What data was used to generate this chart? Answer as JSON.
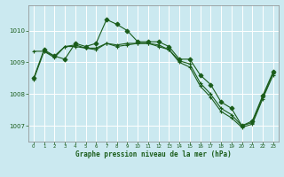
{
  "title": "Graphe pression niveau de la mer (hPa)",
  "bg_color": "#cbe9f0",
  "grid_color": "#ffffff",
  "line_color": "#1a5c1a",
  "xlim": [
    -0.5,
    23.5
  ],
  "ylim": [
    1006.5,
    1010.8
  ],
  "yticks": [
    1007,
    1008,
    1009,
    1010
  ],
  "xticks": [
    0,
    1,
    2,
    3,
    4,
    5,
    6,
    7,
    8,
    9,
    10,
    11,
    12,
    13,
    14,
    15,
    16,
    17,
    18,
    19,
    20,
    21,
    22,
    23
  ],
  "series1": {
    "x": [
      0,
      1,
      2,
      3,
      4,
      5,
      6,
      7,
      8,
      9,
      10,
      11,
      12,
      13,
      14,
      15,
      16,
      17,
      18,
      19,
      20,
      21,
      22,
      23
    ],
    "y": [
      1008.5,
      1009.4,
      1009.2,
      1009.1,
      1009.6,
      1009.5,
      1009.6,
      1010.35,
      1010.2,
      1010.0,
      1009.65,
      1009.65,
      1009.65,
      1009.5,
      1009.1,
      1009.1,
      1008.6,
      1008.3,
      1007.75,
      1007.55,
      1007.0,
      1007.15,
      1007.95,
      1008.7
    ]
  },
  "series2": {
    "x": [
      0,
      1,
      2,
      3,
      4,
      5,
      6,
      7,
      8,
      9,
      10,
      11,
      12,
      13,
      14,
      15,
      16,
      17,
      18,
      19,
      20,
      21,
      22,
      23
    ],
    "y": [
      1009.35,
      1009.35,
      1009.15,
      1009.5,
      1009.55,
      1009.45,
      1009.45,
      1009.6,
      1009.55,
      1009.6,
      1009.6,
      1009.6,
      1009.55,
      1009.4,
      1009.05,
      1008.95,
      1008.35,
      1008.0,
      1007.55,
      1007.35,
      1007.0,
      1007.1,
      1007.9,
      1008.65
    ]
  },
  "series3": {
    "x": [
      0,
      1,
      2,
      3,
      4,
      5,
      6,
      7,
      8,
      9,
      10,
      11,
      12,
      13,
      14,
      15,
      16,
      17,
      18,
      19,
      20,
      21,
      22,
      23
    ],
    "y": [
      1008.45,
      1009.35,
      1009.2,
      1009.5,
      1009.5,
      1009.45,
      1009.4,
      1009.6,
      1009.5,
      1009.55,
      1009.6,
      1009.6,
      1009.5,
      1009.4,
      1009.0,
      1008.85,
      1008.25,
      1007.9,
      1007.45,
      1007.25,
      1006.95,
      1007.05,
      1007.85,
      1008.6
    ]
  }
}
